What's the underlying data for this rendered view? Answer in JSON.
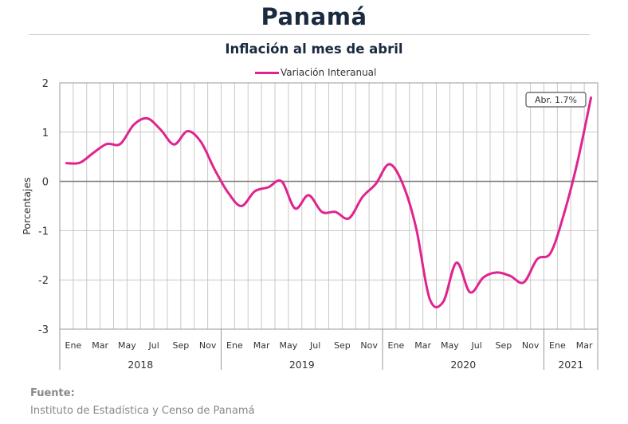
{
  "header": {
    "title": "Panamá"
  },
  "chart_data": {
    "type": "line",
    "title": "Inflación al mes de abril",
    "ylabel": "Porcentajes",
    "xlabel": "",
    "ylim": [
      -3,
      2
    ],
    "yticks": [
      "2",
      "1",
      "0",
      "-1",
      "-2",
      "-3"
    ],
    "grid": true,
    "legend_position": "top-center",
    "x_month_labels": [
      "Ene",
      "Mar",
      "May",
      "Jul",
      "Sep",
      "Nov",
      "Ene",
      "Mar",
      "May",
      "Jul",
      "Sep",
      "Nov",
      "Ene",
      "Mar",
      "May",
      "Jul",
      "Sep",
      "Nov",
      "Ene",
      "Mar"
    ],
    "x_year_labels": [
      "2018",
      "2019",
      "2020",
      "2021"
    ],
    "annotation": "Abr. 1.7%",
    "colors": {
      "series": "#e0248f",
      "zero_line": "#808080",
      "grid": "#c8c8c8"
    },
    "series": [
      {
        "name": "Variación Interanual",
        "x": [
          "2018-01",
          "2018-02",
          "2018-03",
          "2018-04",
          "2018-05",
          "2018-06",
          "2018-07",
          "2018-08",
          "2018-09",
          "2018-10",
          "2018-11",
          "2018-12",
          "2019-01",
          "2019-02",
          "2019-03",
          "2019-04",
          "2019-05",
          "2019-06",
          "2019-07",
          "2019-08",
          "2019-09",
          "2019-10",
          "2019-11",
          "2019-12",
          "2020-01",
          "2020-02",
          "2020-03",
          "2020-04",
          "2020-05",
          "2020-06",
          "2020-07",
          "2020-08",
          "2020-09",
          "2020-10",
          "2020-11",
          "2020-12",
          "2021-01",
          "2021-02",
          "2021-03",
          "2021-04"
        ],
        "values": [
          0.37,
          0.38,
          0.58,
          0.76,
          0.76,
          1.15,
          1.28,
          1.05,
          0.75,
          1.02,
          0.8,
          0.25,
          -0.22,
          -0.5,
          -0.2,
          -0.12,
          0.0,
          -0.55,
          -0.28,
          -0.62,
          -0.62,
          -0.75,
          -0.32,
          -0.05,
          0.35,
          -0.05,
          -0.95,
          -2.38,
          -2.45,
          -1.65,
          -2.25,
          -1.95,
          -1.85,
          -1.92,
          -2.05,
          -1.58,
          -1.45,
          -0.65,
          0.4,
          1.7
        ]
      }
    ]
  },
  "source": {
    "label": "Fuente:",
    "text": "Instituto de Estadística y Censo de Panamá"
  }
}
